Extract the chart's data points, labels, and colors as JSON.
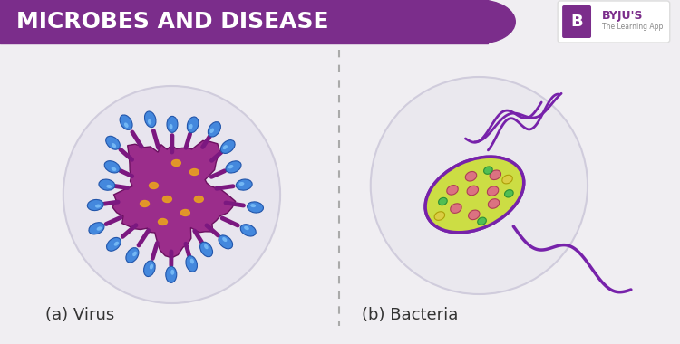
{
  "title": "MICROBES AND DISEASE",
  "title_bg_color": "#7B2D8B",
  "title_text_color": "#FFFFFF",
  "bg_color": "#F0EEF2",
  "label_a": "(a) Virus",
  "label_b": "(b) Bacteria",
  "virus_body_color": "#9B2D8B",
  "virus_spike_color": "#8B2080",
  "virus_tip_color": "#4488DD",
  "virus_spot_color": "#E8A020",
  "bacteria_body_color": "#CCDD44",
  "bacteria_outline_color": "#7722AA",
  "bacteria_spot_pink": "#DD6688",
  "bacteria_spot_green": "#44BB55",
  "bacteria_spot_yellow": "#DDCC44",
  "bacteria_flagella_color": "#7722AA",
  "byju_purple": "#7B2D8B"
}
